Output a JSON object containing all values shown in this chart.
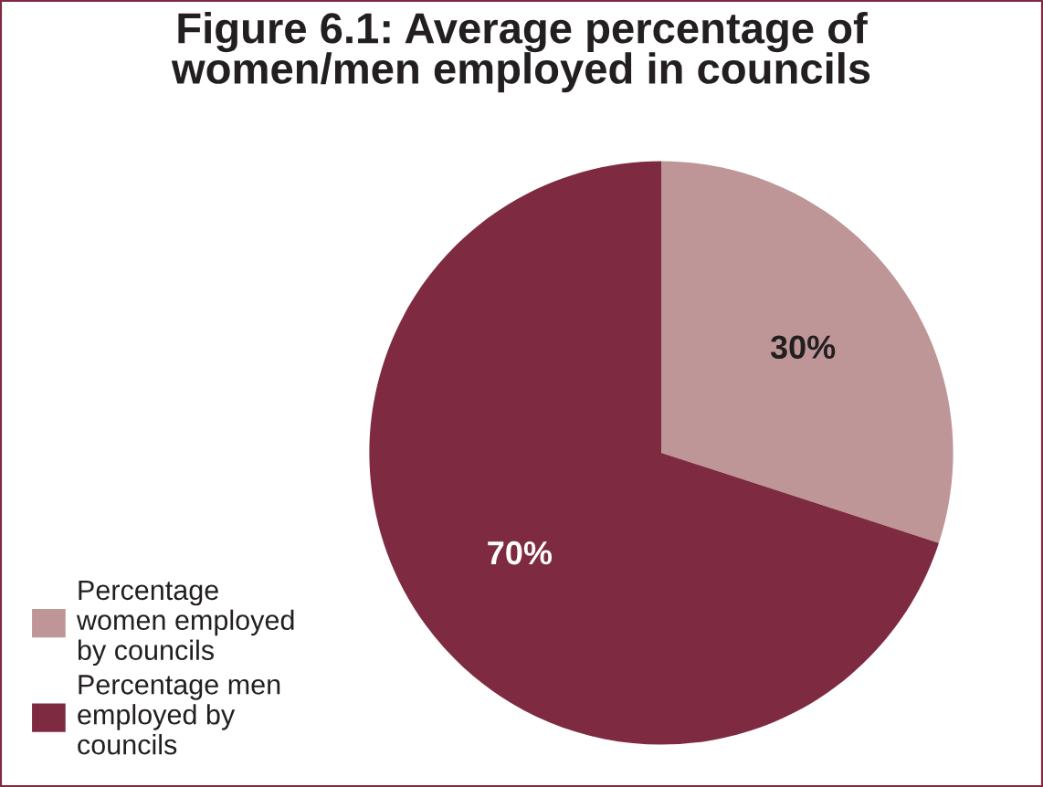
{
  "chart_data": {
    "type": "pie",
    "title": "Figure 6.1: Average percentage of\nwomen/men employed in councils",
    "categories": [
      "Percentage\nwomen employed\nby councils",
      "Percentage men\nemployed by\ncouncils"
    ],
    "values": [
      30,
      70
    ],
    "colors": [
      "#be9697",
      "#7e2b41"
    ],
    "value_labels": [
      "30%",
      "70%"
    ],
    "legend": "bottom left"
  }
}
